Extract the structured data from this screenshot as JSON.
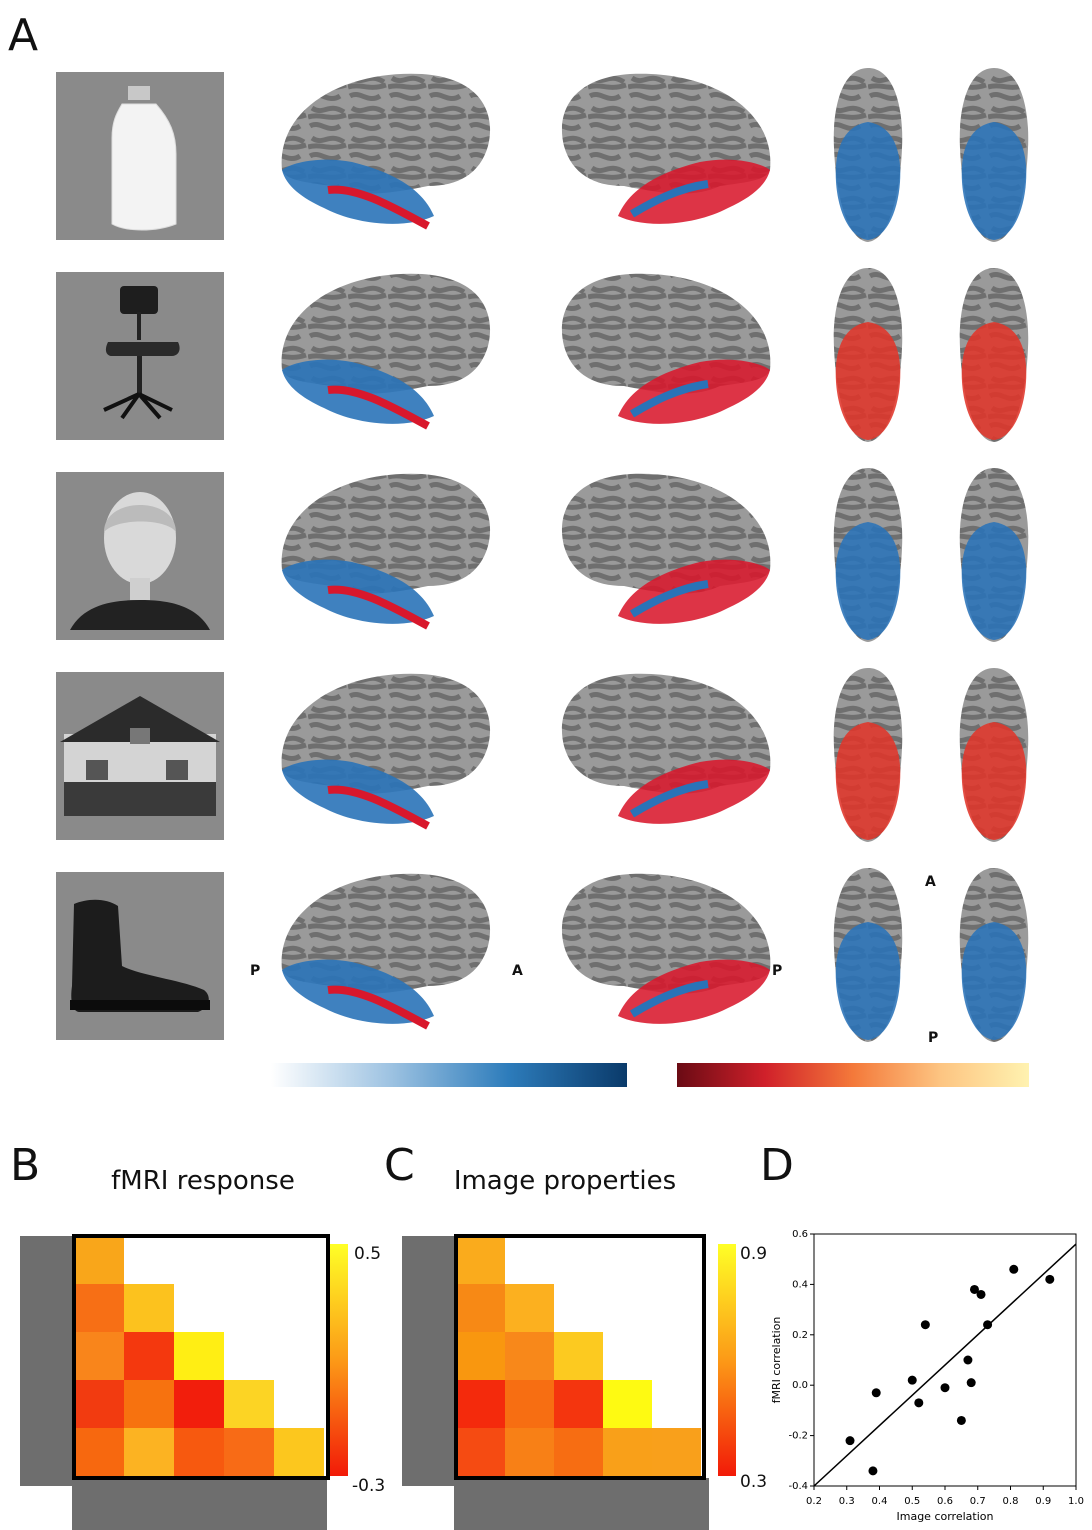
{
  "panels": {
    "A": "A",
    "B": "B",
    "C": "C",
    "D": "D"
  },
  "brain_orientation": {
    "p_left": "P",
    "a_mid": "A",
    "p_right": "P",
    "a_ventral": "A",
    "p_ventral": "P"
  },
  "stimuli": [
    "bottle-icon",
    "chair-icon",
    "face-icon",
    "house-icon",
    "shoe-icon"
  ],
  "colorbars": {
    "negative": "#0a3a6a",
    "positive": "#fff2b0"
  },
  "matrix_b": {
    "title": "fMRI response",
    "cbar_max": "0.5",
    "cbar_min": "-0.3",
    "cells": [
      [
        "#f9a61a"
      ],
      [
        "#f76f15",
        "#fcc21e"
      ],
      [
        "#f9851b",
        "#f4380e",
        "#ffee14"
      ],
      [
        "#f23b10",
        "#f7720f",
        "#f21e0c",
        "#fcd424"
      ],
      [
        "#f7680f",
        "#fcb322",
        "#f7590f",
        "#f86b16",
        "#fcc71e"
      ]
    ]
  },
  "matrix_c": {
    "title": "Image properties",
    "cbar_max": "0.9",
    "cbar_min": "0.3",
    "cells": [
      [
        "#faab1c"
      ],
      [
        "#f78915",
        "#fcb01f"
      ],
      [
        "#f9970f",
        "#f8881a",
        "#fcca20"
      ],
      [
        "#f42a0c",
        "#f76e12",
        "#f4350e",
        "#fefa12"
      ],
      [
        "#f54b12",
        "#f88016",
        "#f76d12",
        "#f9a019",
        "#f9a01b"
      ]
    ]
  },
  "chart_data": {
    "type": "scatter",
    "xlabel": "Image correlation",
    "ylabel": "fMRI correlation",
    "xlim": [
      0.2,
      1.0
    ],
    "ylim": [
      -0.4,
      0.6
    ],
    "xticks": [
      "0.2",
      "0.3",
      "0.4",
      "0.5",
      "0.6",
      "0.7",
      "0.8",
      "0.9",
      "1.0"
    ],
    "yticks": [
      "-0.4",
      "-0.2",
      "0.0",
      "0.2",
      "0.4",
      "0.6"
    ],
    "points": [
      {
        "x": 0.31,
        "y": -0.22
      },
      {
        "x": 0.38,
        "y": -0.34
      },
      {
        "x": 0.39,
        "y": -0.03
      },
      {
        "x": 0.5,
        "y": 0.02
      },
      {
        "x": 0.52,
        "y": -0.07
      },
      {
        "x": 0.54,
        "y": 0.24
      },
      {
        "x": 0.6,
        "y": -0.01
      },
      {
        "x": 0.65,
        "y": -0.14
      },
      {
        "x": 0.67,
        "y": 0.1
      },
      {
        "x": 0.68,
        "y": 0.01
      },
      {
        "x": 0.69,
        "y": 0.38
      },
      {
        "x": 0.71,
        "y": 0.36
      },
      {
        "x": 0.73,
        "y": 0.24
      },
      {
        "x": 0.81,
        "y": 0.46
      },
      {
        "x": 0.92,
        "y": 0.42
      }
    ],
    "fit_line": {
      "x": [
        0.2,
        1.0
      ],
      "y": [
        -0.4,
        0.56
      ]
    }
  }
}
